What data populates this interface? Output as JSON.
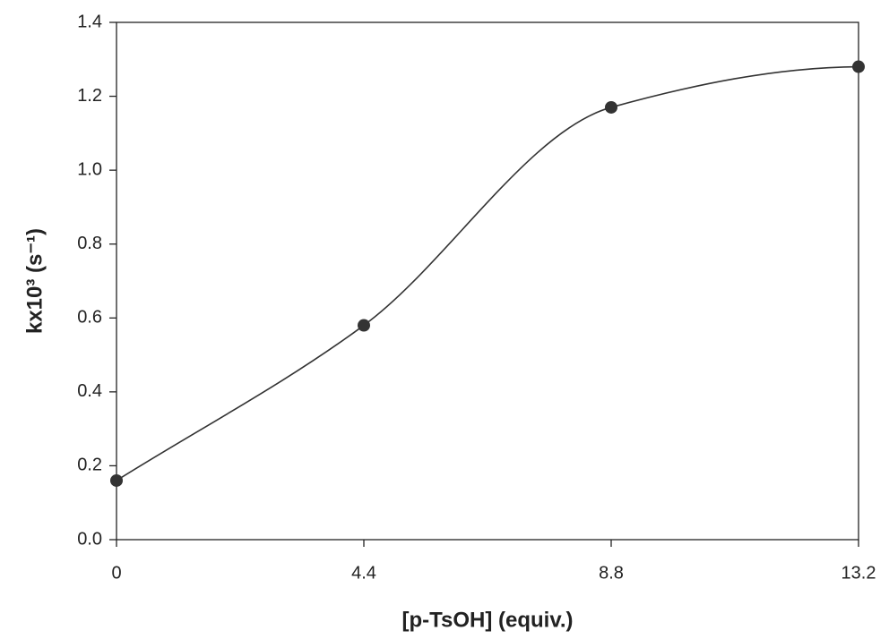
{
  "chart_data": {
    "type": "line",
    "x": [
      0,
      4.4,
      8.8,
      13.2
    ],
    "values": [
      0.16,
      0.58,
      1.17,
      1.28
    ],
    "color": "#333333",
    "xlim": [
      0,
      13.2
    ],
    "xticks": [
      0,
      4.4,
      8.8,
      13.2
    ],
    "ylim": [
      0,
      1.4
    ],
    "yticks": [
      {
        "value": 0,
        "label": "0.0"
      },
      0.2,
      0.4,
      0.6,
      0.8,
      {
        "value": 1,
        "label": "1.0"
      },
      1.2,
      1.4
    ],
    "xlabel": "[p-TsOH] (equiv.)",
    "ylabel": "kx10³ (s⁻¹)"
  }
}
